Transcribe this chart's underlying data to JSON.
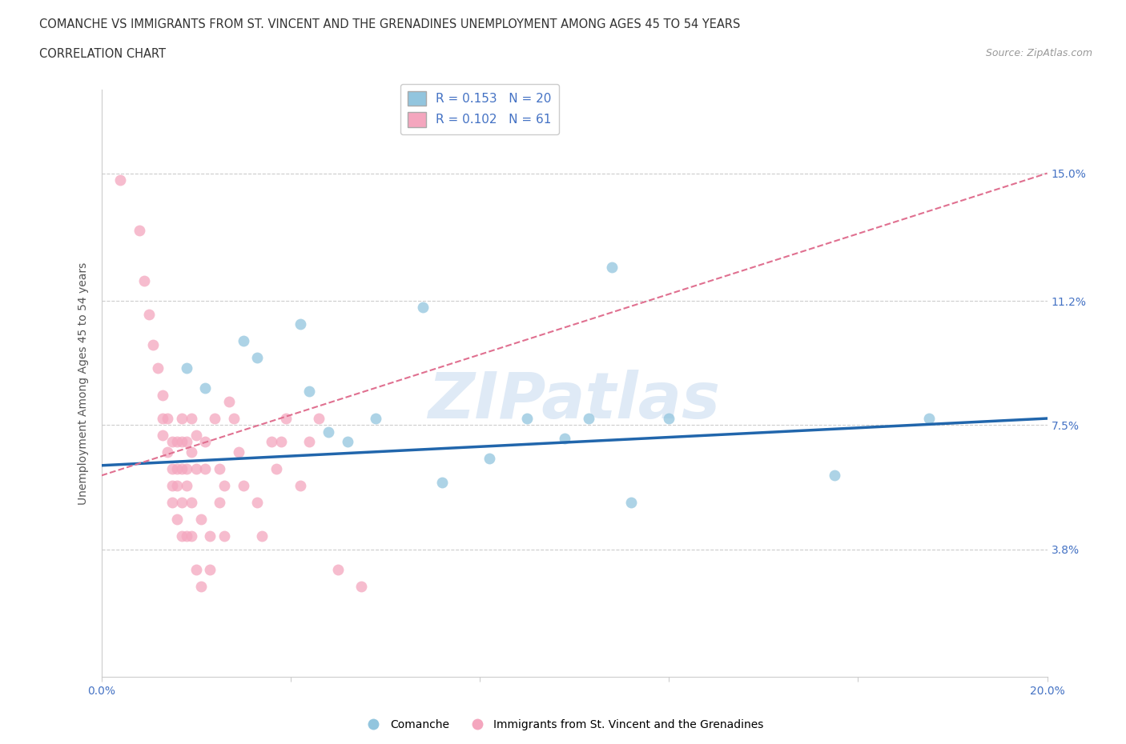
{
  "title_line1": "COMANCHE VS IMMIGRANTS FROM ST. VINCENT AND THE GRENADINES UNEMPLOYMENT AMONG AGES 45 TO 54 YEARS",
  "title_line2": "CORRELATION CHART",
  "source": "Source: ZipAtlas.com",
  "ylabel": "Unemployment Among Ages 45 to 54 years",
  "xlim": [
    0.0,
    0.2
  ],
  "ylim": [
    0.0,
    0.175
  ],
  "xtick_positions": [
    0.0,
    0.04,
    0.08,
    0.12,
    0.16,
    0.2
  ],
  "xtick_labels": [
    "0.0%",
    "",
    "",
    "",
    "",
    "20.0%"
  ],
  "ytick_vals": [
    0.038,
    0.075,
    0.112,
    0.15
  ],
  "ytick_labels": [
    "3.8%",
    "7.5%",
    "11.2%",
    "15.0%"
  ],
  "R_blue": 0.153,
  "N_blue": 20,
  "R_pink": 0.102,
  "N_pink": 61,
  "blue_color": "#92c5de",
  "pink_color": "#f4a6be",
  "blue_line_color": "#2166ac",
  "pink_line_color": "#e07090",
  "watermark_text": "ZIPatlas",
  "blue_points": [
    [
      0.018,
      0.092
    ],
    [
      0.022,
      0.086
    ],
    [
      0.03,
      0.1
    ],
    [
      0.033,
      0.095
    ],
    [
      0.042,
      0.105
    ],
    [
      0.044,
      0.085
    ],
    [
      0.048,
      0.073
    ],
    [
      0.052,
      0.07
    ],
    [
      0.058,
      0.077
    ],
    [
      0.068,
      0.11
    ],
    [
      0.072,
      0.058
    ],
    [
      0.082,
      0.065
    ],
    [
      0.09,
      0.077
    ],
    [
      0.098,
      0.071
    ],
    [
      0.103,
      0.077
    ],
    [
      0.108,
      0.122
    ],
    [
      0.112,
      0.052
    ],
    [
      0.12,
      0.077
    ],
    [
      0.155,
      0.06
    ],
    [
      0.175,
      0.077
    ]
  ],
  "pink_points": [
    [
      0.004,
      0.148
    ],
    [
      0.008,
      0.133
    ],
    [
      0.009,
      0.118
    ],
    [
      0.01,
      0.108
    ],
    [
      0.011,
      0.099
    ],
    [
      0.012,
      0.092
    ],
    [
      0.013,
      0.084
    ],
    [
      0.013,
      0.077
    ],
    [
      0.013,
      0.072
    ],
    [
      0.014,
      0.067
    ],
    [
      0.014,
      0.077
    ],
    [
      0.015,
      0.07
    ],
    [
      0.015,
      0.062
    ],
    [
      0.015,
      0.057
    ],
    [
      0.015,
      0.052
    ],
    [
      0.016,
      0.047
    ],
    [
      0.016,
      0.07
    ],
    [
      0.016,
      0.062
    ],
    [
      0.016,
      0.057
    ],
    [
      0.017,
      0.077
    ],
    [
      0.017,
      0.07
    ],
    [
      0.017,
      0.062
    ],
    [
      0.017,
      0.052
    ],
    [
      0.017,
      0.042
    ],
    [
      0.018,
      0.057
    ],
    [
      0.018,
      0.042
    ],
    [
      0.018,
      0.07
    ],
    [
      0.018,
      0.062
    ],
    [
      0.019,
      0.052
    ],
    [
      0.019,
      0.042
    ],
    [
      0.019,
      0.077
    ],
    [
      0.019,
      0.067
    ],
    [
      0.02,
      0.072
    ],
    [
      0.02,
      0.062
    ],
    [
      0.02,
      0.032
    ],
    [
      0.021,
      0.027
    ],
    [
      0.021,
      0.047
    ],
    [
      0.022,
      0.07
    ],
    [
      0.022,
      0.062
    ],
    [
      0.023,
      0.042
    ],
    [
      0.023,
      0.032
    ],
    [
      0.024,
      0.077
    ],
    [
      0.025,
      0.062
    ],
    [
      0.025,
      0.052
    ],
    [
      0.026,
      0.057
    ],
    [
      0.026,
      0.042
    ],
    [
      0.027,
      0.082
    ],
    [
      0.028,
      0.077
    ],
    [
      0.029,
      0.067
    ],
    [
      0.03,
      0.057
    ],
    [
      0.033,
      0.052
    ],
    [
      0.034,
      0.042
    ],
    [
      0.036,
      0.07
    ],
    [
      0.037,
      0.062
    ],
    [
      0.038,
      0.07
    ],
    [
      0.039,
      0.077
    ],
    [
      0.042,
      0.057
    ],
    [
      0.044,
      0.07
    ],
    [
      0.046,
      0.077
    ],
    [
      0.05,
      0.032
    ],
    [
      0.055,
      0.027
    ]
  ],
  "blue_line_x": [
    0.0,
    0.2
  ],
  "blue_line_y": [
    0.063,
    0.077
  ],
  "pink_line_x": [
    0.0,
    0.2
  ],
  "pink_line_y": [
    0.06,
    0.15
  ]
}
